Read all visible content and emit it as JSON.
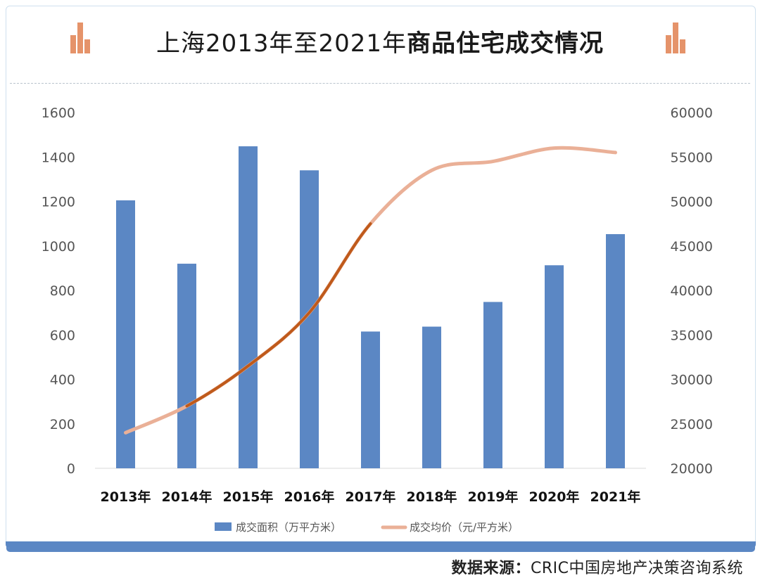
{
  "title": {
    "part1": "上海2013年至2021年",
    "part2": "商品住宅成交情况"
  },
  "footer": {
    "label": "数据来源：",
    "source": "CRIC中国房地产决策咨询系统"
  },
  "colors": {
    "bar": "#5b87c4",
    "line_light": "#eab097",
    "line_dark": "#bf5a1b",
    "icon": "#e5936a"
  },
  "chart_data": {
    "type": "bar",
    "categories": [
      "2013年",
      "2014年",
      "2015年",
      "2016年",
      "2017年",
      "2018年",
      "2019年",
      "2020年",
      "2021年"
    ],
    "series": [
      {
        "name": "成交面积（万平方米）",
        "type": "bar",
        "axis": "left",
        "values": [
          1205,
          920,
          1448,
          1340,
          615,
          637,
          748,
          913,
          1053
        ]
      },
      {
        "name": "成交均价（元/平方米）",
        "type": "line",
        "axis": "right",
        "values": [
          24000,
          27000,
          31500,
          37500,
          47500,
          53500,
          54500,
          56000,
          55500
        ]
      }
    ],
    "left_axis": {
      "min": 0,
      "max": 1600,
      "ticks": [
        0,
        200,
        400,
        600,
        800,
        1000,
        1200,
        1400,
        1600
      ]
    },
    "right_axis": {
      "min": 20000,
      "max": 60000,
      "ticks": [
        20000,
        25000,
        30000,
        35000,
        40000,
        45000,
        50000,
        55000,
        60000
      ]
    },
    "legend": [
      "成交面积（万平方米）",
      "成交均价（元/平方米）"
    ],
    "legend_position": "bottom"
  }
}
